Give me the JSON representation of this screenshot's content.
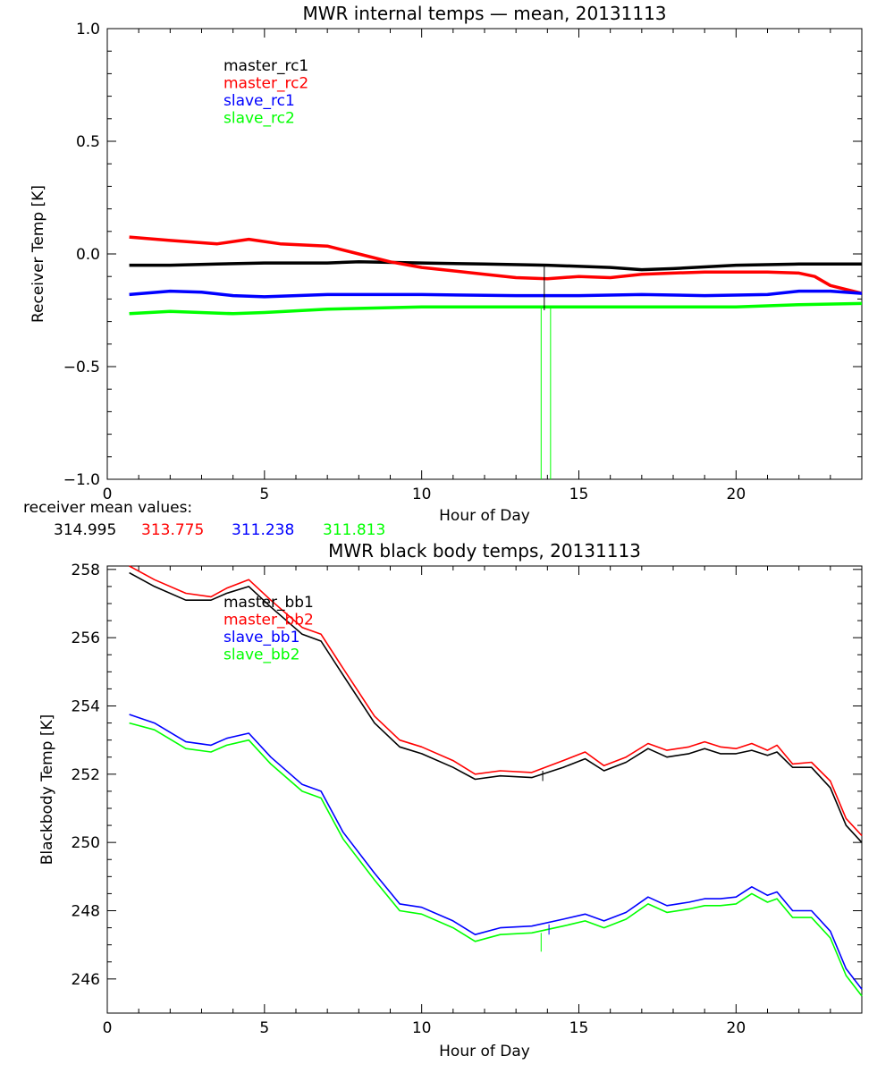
{
  "colors": {
    "black": "#000000",
    "red": "#ff0000",
    "blue": "#0000ff",
    "green": "#00ff00"
  },
  "chart_data": [
    {
      "type": "line",
      "title": "MWR internal temps — mean, 20131113",
      "xlabel": "Hour of Day",
      "ylabel": "Receiver Temp [K]",
      "xlim": [
        0,
        24
      ],
      "ylim": [
        -1.0,
        1.0
      ],
      "xticks": [
        0,
        5,
        10,
        15,
        20
      ],
      "yticks": [
        -1.0,
        -0.5,
        0.0,
        0.5,
        1.0
      ],
      "ytick_labels": [
        "−1.0",
        "−0.5",
        "0.0",
        "0.5",
        "1.0"
      ],
      "grid": false,
      "legend_position": "top-left",
      "series": [
        {
          "name": "master_rc1",
          "color": "black",
          "x": [
            0.7,
            2,
            3.5,
            5,
            7,
            8,
            10,
            12,
            14,
            16,
            17,
            18,
            20,
            22,
            24
          ],
          "y": [
            -0.05,
            -0.05,
            -0.045,
            -0.04,
            -0.04,
            -0.035,
            -0.04,
            -0.045,
            -0.05,
            -0.06,
            -0.07,
            -0.065,
            -0.05,
            -0.045,
            -0.045
          ]
        },
        {
          "name": "master_rc2",
          "color": "red",
          "x": [
            0.7,
            2,
            3.5,
            4.5,
            5.5,
            7,
            8,
            9,
            10,
            11,
            12,
            13,
            14,
            15,
            16,
            17,
            18,
            19,
            20,
            21,
            22,
            22.5,
            23,
            24
          ],
          "y": [
            0.075,
            0.06,
            0.045,
            0.065,
            0.045,
            0.035,
            0.0,
            -0.035,
            -0.06,
            -0.075,
            -0.09,
            -0.105,
            -0.11,
            -0.1,
            -0.105,
            -0.09,
            -0.085,
            -0.08,
            -0.08,
            -0.08,
            -0.085,
            -0.1,
            -0.14,
            -0.175
          ]
        },
        {
          "name": "slave_rc1",
          "color": "blue",
          "x": [
            0.7,
            2,
            3,
            4,
            5,
            7,
            10,
            13,
            15,
            17,
            19,
            21,
            22,
            23,
            24
          ],
          "y": [
            -0.18,
            -0.165,
            -0.17,
            -0.185,
            -0.19,
            -0.18,
            -0.18,
            -0.185,
            -0.185,
            -0.18,
            -0.185,
            -0.18,
            -0.165,
            -0.165,
            -0.175
          ]
        },
        {
          "name": "slave_rc2",
          "color": "green",
          "x": [
            0.7,
            2,
            4,
            5,
            7,
            10,
            13,
            15,
            17,
            20,
            22,
            24
          ],
          "y": [
            -0.265,
            -0.255,
            -0.265,
            -0.26,
            -0.245,
            -0.235,
            -0.235,
            -0.235,
            -0.235,
            -0.235,
            -0.225,
            -0.22
          ]
        }
      ],
      "spikes": [
        {
          "color": "green",
          "x": 13.8,
          "y_from": -0.24,
          "y_to": -1.0
        },
        {
          "color": "green",
          "x": 14.1,
          "y_from": -0.24,
          "y_to": -1.0
        },
        {
          "color": "black",
          "x": 13.9,
          "y_from": -0.05,
          "y_to": -0.25
        }
      ]
    },
    {
      "type": "line",
      "title": "MWR black body temps, 20131113",
      "xlabel": "Hour of Day",
      "ylabel": "Blackbody Temp [K]",
      "xlim": [
        0,
        24
      ],
      "ylim": [
        245,
        258.1
      ],
      "xticks": [
        0,
        5,
        10,
        15,
        20
      ],
      "yticks": [
        246,
        248,
        250,
        252,
        254,
        256,
        258
      ],
      "ytick_labels": [
        "246",
        "248",
        "250",
        "252",
        "254",
        "256",
        "258"
      ],
      "grid": false,
      "legend_position": "top-left",
      "series": [
        {
          "name": "master_bb1",
          "color": "black",
          "x": [
            0.7,
            1.5,
            2.5,
            3.3,
            3.8,
            4.5,
            5.2,
            6.2,
            6.8,
            7.5,
            8.5,
            9.3,
            10,
            11,
            11.7,
            12.5,
            13.5,
            14.5,
            15.2,
            15.8,
            16.5,
            17.2,
            17.8,
            18.5,
            19,
            19.5,
            20,
            20.5,
            21,
            21.3,
            21.8,
            22.4,
            23,
            23.5,
            24
          ],
          "y": [
            257.9,
            257.5,
            257.1,
            257.1,
            257.3,
            257.5,
            256.9,
            256.1,
            255.9,
            254.9,
            253.5,
            252.8,
            252.6,
            252.2,
            251.85,
            251.95,
            251.9,
            252.2,
            252.45,
            252.1,
            252.35,
            252.75,
            252.5,
            252.6,
            252.75,
            252.6,
            252.6,
            252.7,
            252.55,
            252.65,
            252.2,
            252.2,
            251.6,
            250.5,
            250.0
          ]
        },
        {
          "name": "master_bb2",
          "color": "red",
          "x": [
            0.7,
            1.5,
            2.5,
            3.3,
            3.8,
            4.5,
            5.2,
            6.2,
            6.8,
            7.5,
            8.5,
            9.3,
            10,
            11,
            11.7,
            12.5,
            13.5,
            14.5,
            15.2,
            15.8,
            16.5,
            17.2,
            17.8,
            18.5,
            19,
            19.5,
            20,
            20.5,
            21,
            21.3,
            21.8,
            22.4,
            23,
            23.5,
            24
          ],
          "y": [
            258.1,
            257.7,
            257.3,
            257.2,
            257.45,
            257.7,
            257.1,
            256.3,
            256.1,
            255.1,
            253.7,
            253.0,
            252.8,
            252.4,
            252.0,
            252.1,
            252.05,
            252.4,
            252.65,
            252.25,
            252.5,
            252.9,
            252.7,
            252.8,
            252.95,
            252.8,
            252.75,
            252.9,
            252.7,
            252.85,
            252.3,
            252.35,
            251.8,
            250.7,
            250.2
          ]
        },
        {
          "name": "slave_bb1",
          "color": "blue",
          "x": [
            0.7,
            1.5,
            2.5,
            3.3,
            3.8,
            4.5,
            5.2,
            6.2,
            6.8,
            7.5,
            8.5,
            9.3,
            10,
            11,
            11.7,
            12.5,
            13.5,
            14.5,
            15.2,
            15.8,
            16.5,
            17.2,
            17.8,
            18.5,
            19,
            19.5,
            20,
            20.5,
            21,
            21.3,
            21.8,
            22.4,
            23,
            23.5,
            24
          ],
          "y": [
            253.75,
            253.5,
            252.95,
            252.85,
            253.05,
            253.2,
            252.5,
            251.7,
            251.5,
            250.3,
            249.1,
            248.2,
            248.1,
            247.7,
            247.3,
            247.5,
            247.55,
            247.75,
            247.9,
            247.7,
            247.95,
            248.4,
            248.15,
            248.25,
            248.35,
            248.35,
            248.4,
            248.7,
            248.45,
            248.55,
            248.0,
            248.0,
            247.4,
            246.3,
            245.7
          ]
        },
        {
          "name": "slave_bb2",
          "color": "green",
          "x": [
            0.7,
            1.5,
            2.5,
            3.3,
            3.8,
            4.5,
            5.2,
            6.2,
            6.8,
            7.5,
            8.5,
            9.3,
            10,
            11,
            11.7,
            12.5,
            13.5,
            14.5,
            15.2,
            15.8,
            16.5,
            17.2,
            17.8,
            18.5,
            19,
            19.5,
            20,
            20.5,
            21,
            21.3,
            21.8,
            22.4,
            23,
            23.5,
            24
          ],
          "y": [
            253.5,
            253.3,
            252.75,
            252.65,
            252.85,
            253.0,
            252.3,
            251.5,
            251.3,
            250.1,
            248.9,
            248.0,
            247.9,
            247.5,
            247.1,
            247.3,
            247.35,
            247.55,
            247.7,
            247.5,
            247.75,
            248.2,
            247.95,
            248.05,
            248.15,
            248.15,
            248.2,
            248.5,
            248.25,
            248.35,
            247.8,
            247.8,
            247.2,
            246.1,
            245.5
          ]
        }
      ],
      "spikes": [
        {
          "color": "green",
          "x": 13.8,
          "y_from": 247.35,
          "y_to": 246.8
        },
        {
          "color": "black",
          "x": 13.85,
          "y_from": 252.1,
          "y_to": 251.8
        },
        {
          "color": "blue",
          "x": 14.05,
          "y_from": 247.6,
          "y_to": 247.3
        }
      ]
    }
  ],
  "mean_values": {
    "label": "receiver mean values:",
    "values": [
      {
        "text": "314.995",
        "color": "black"
      },
      {
        "text": "313.775",
        "color": "red"
      },
      {
        "text": "311.238",
        "color": "blue"
      },
      {
        "text": "311.813",
        "color": "green"
      }
    ]
  }
}
